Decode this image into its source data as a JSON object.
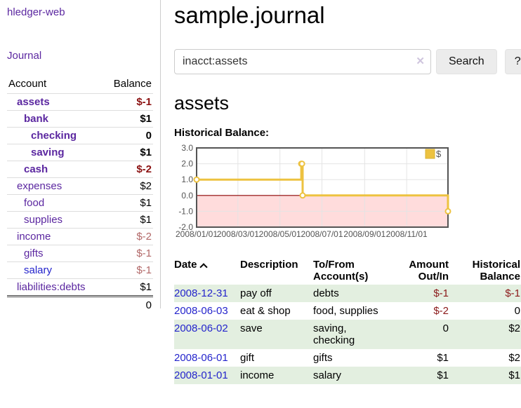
{
  "sidebar": {
    "brand": "hledger-web",
    "nav": {
      "journal": "Journal"
    },
    "accounts_table": {
      "headers": {
        "account": "Account",
        "balance": "Balance"
      },
      "rows": [
        {
          "account": "assets",
          "balance": "$-1"
        },
        {
          "account": "bank",
          "balance": "$1"
        },
        {
          "account": "checking",
          "balance": "0"
        },
        {
          "account": "saving",
          "balance": "$1"
        },
        {
          "account": "cash",
          "balance": "$-2"
        },
        {
          "account": "expenses",
          "balance": "$2"
        },
        {
          "account": "food",
          "balance": "$1"
        },
        {
          "account": "supplies",
          "balance": "$1"
        },
        {
          "account": "income",
          "balance": "$-2"
        },
        {
          "account": "gifts",
          "balance": "$-1"
        },
        {
          "account": "salary",
          "balance": "$-1"
        },
        {
          "account": "liabilities:debts",
          "balance": "$1"
        }
      ],
      "total": "0"
    }
  },
  "header": {
    "title": "sample.journal"
  },
  "search": {
    "value": "inacct:assets",
    "clear_icon": "✕",
    "search_button": "Search",
    "help_button": "?"
  },
  "account_view": {
    "heading": "assets",
    "chart_title": "Historical Balance:"
  },
  "chart_data": {
    "type": "line",
    "steps": true,
    "title": "Historical Balance:",
    "x_start": "2008-01-01",
    "x_end": "2008-12-31",
    "ylim": [
      -2,
      3
    ],
    "yticks": [
      "3.0",
      "2.0",
      "1.0",
      "0.0",
      "-1.0",
      "-2.0"
    ],
    "xticks": [
      "2008/01/01",
      "2008/03/01",
      "2008/05/01",
      "2008/07/01",
      "2008/09/01",
      "2008/11/01"
    ],
    "series": [
      {
        "name": "$",
        "color": "#edc240",
        "points": [
          [
            "2008-01-01",
            1
          ],
          [
            "2008-06-01",
            2
          ],
          [
            "2008-06-02",
            2
          ],
          [
            "2008-06-03",
            0
          ],
          [
            "2008-12-31",
            -1
          ]
        ]
      }
    ],
    "legend_position": "top-right",
    "negative_region_fill": "#ffdcdc",
    "zero_line_color": "#8b0000",
    "grid_color": "#e4e4e4",
    "frame_color": "#545454",
    "tick_label_color": "#545454"
  },
  "register": {
    "headers": {
      "date": "Date",
      "description": "Description",
      "accounts": "To/From Account(s)",
      "amount": "Amount Out/In",
      "balance": "Historical Balance"
    },
    "rows": [
      {
        "date": "2008-12-31",
        "description": "pay off",
        "accounts": "debts",
        "amount": "$-1",
        "balance": "$-1"
      },
      {
        "date": "2008-06-03",
        "description": "eat & shop",
        "accounts": "food, supplies",
        "amount": "$-2",
        "balance": "0"
      },
      {
        "date": "2008-06-02",
        "description": "save",
        "accounts": "saving, checking",
        "amount": "0",
        "balance": "$2"
      },
      {
        "date": "2008-06-01",
        "description": "gift",
        "accounts": "gifts",
        "amount": "$1",
        "balance": "$2"
      },
      {
        "date": "2008-01-01",
        "description": "income",
        "accounts": "salary",
        "amount": "$1",
        "balance": "$1"
      }
    ]
  }
}
